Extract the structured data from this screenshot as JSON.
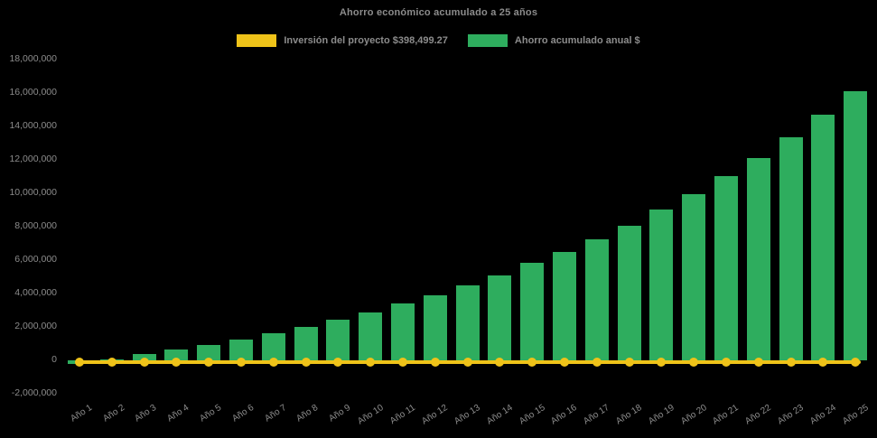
{
  "title": "Ahorro económico acumulado a 25 años",
  "legend": {
    "items": [
      {
        "label": "Inversión del proyecto $398,499.27",
        "color": "#EFC319"
      },
      {
        "label": "Ahorro acumulado anual $",
        "color": "#2EAD5E"
      }
    ]
  },
  "colors": {
    "background": "#000000",
    "bar_green": "#2EAD5E",
    "line_yellow": "#EFC319",
    "text_gray": "#8C8C8C"
  },
  "chart_data": {
    "type": "bar",
    "title": "Ahorro económico acumulado a 25 años",
    "categories": [
      "Año 1",
      "Año 2",
      "Año 3",
      "Año 4",
      "Año 5",
      "Año 6",
      "Año 7",
      "Año 8",
      "Año 9",
      "Año 10",
      "Año 11",
      "Año 12",
      "Año 13",
      "Año 14",
      "Año 15",
      "Año 16",
      "Año 17",
      "Año 18",
      "Año 19",
      "Año 20",
      "Año 21",
      "Año 22",
      "Año 23",
      "Año 24",
      "Año 25"
    ],
    "series": [
      {
        "name": "Ahorro acumulado anual $",
        "type": "bar",
        "color": "#2EAD5E",
        "values": [
          -250000,
          50000,
          380000,
          620000,
          900000,
          1250000,
          1600000,
          2000000,
          2400000,
          2850000,
          3400000,
          3900000,
          4450000,
          5050000,
          5800000,
          6450000,
          7250000,
          8050000,
          9000000,
          9950000,
          11000000,
          12100000,
          13350000,
          14700000,
          16100000
        ]
      },
      {
        "name": "Inversión del proyecto $398,499.27",
        "type": "line",
        "color": "#EFC319",
        "value": 398499.27,
        "plotted_at": "flat line at baseline (~0) with round markers at every year"
      }
    ],
    "xlabel": "",
    "ylabel": "",
    "ylim": [
      -2000000,
      18000000
    ],
    "ytick_step": 2000000,
    "y_tick_labels": [
      "18,000,000",
      "16,000,000",
      "14,000,000",
      "12,000,000",
      "10,000,000",
      "8,000,000",
      "6,000,000",
      "4,000,000",
      "2,000,000",
      "0",
      "-2,000,000"
    ],
    "grid": false,
    "legend_position": "top-center",
    "background": "#000000"
  }
}
